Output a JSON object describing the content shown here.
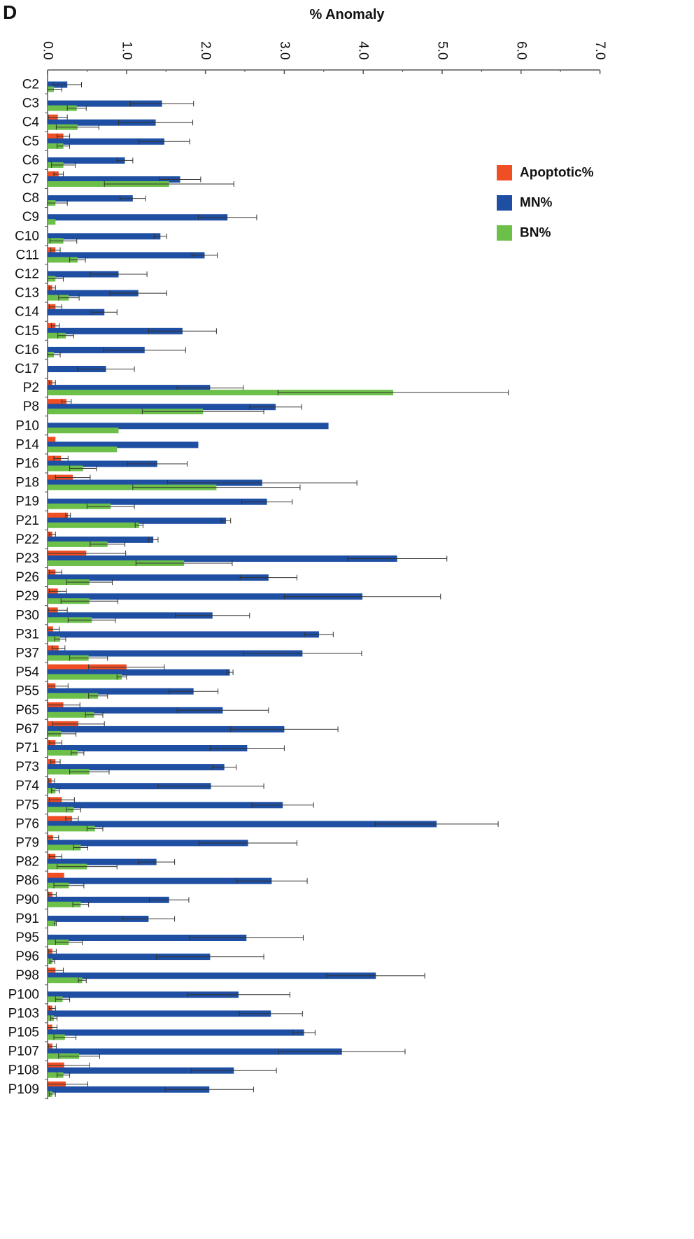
{
  "panel_label": "D",
  "chart_data": {
    "type": "bar",
    "orientation": "horizontal",
    "title": "% Anomaly",
    "xlabel": "% Anomaly",
    "ylabel": "",
    "xlim": [
      0,
      7
    ],
    "x_ticks": [
      "0.0",
      "1.0",
      "2.0",
      "3.0",
      "4.0",
      "5.0",
      "6.0",
      "7.0"
    ],
    "tick_label_rotation": "90° clockwise",
    "grid": false,
    "legend_position": "right",
    "colors": {
      "Apoptotic%": "#f04e23",
      "MN%": "#1f4fa3",
      "BN%": "#6cc04a"
    },
    "categories": [
      "C2",
      "C3",
      "C4",
      "C5",
      "C6",
      "C7",
      "C8",
      "C9",
      "C10",
      "C11",
      "C12",
      "C13",
      "C14",
      "C15",
      "C16",
      "C17",
      "P2",
      "P8",
      "P10",
      "P14",
      "P16",
      "P18",
      "P19",
      "P21",
      "P22",
      "P23",
      "P26",
      "P29",
      "P30",
      "P31",
      "P37",
      "P54",
      "P55",
      "P65",
      "P67",
      "P71",
      "P73",
      "P74",
      "P75",
      "P76",
      "P79",
      "P82",
      "P86",
      "P90",
      "P91",
      "P95",
      "P96",
      "P98",
      "P100",
      "P103",
      "P105",
      "P107",
      "P108",
      "P109"
    ],
    "series": [
      {
        "name": "Apoptotic%",
        "values": [
          0,
          0,
          0.13,
          0.2,
          0,
          0.14,
          0,
          0,
          0,
          0.1,
          0,
          0.06,
          0.1,
          0.1,
          0,
          0,
          0.06,
          0.24,
          0,
          0.1,
          0.17,
          0.32,
          0,
          0.26,
          0.06,
          0.49,
          0.1,
          0.13,
          0.13,
          0.07,
          0.14,
          1.0,
          0.1,
          0.2,
          0.39,
          0.1,
          0.1,
          0.05,
          0.18,
          0.31,
          0.07,
          0.1,
          0.21,
          0.06,
          0,
          0,
          0.06,
          0.1,
          0,
          0.06,
          0.06,
          0.06,
          0.21,
          0.23
        ],
        "errors": [
          0,
          0,
          0.12,
          0.08,
          0,
          0.06,
          0,
          0,
          0,
          0.06,
          0,
          0.04,
          0.08,
          0.05,
          0,
          0,
          0.04,
          0.06,
          0,
          0,
          0.09,
          0.22,
          0,
          0.03,
          0.04,
          0.5,
          0.08,
          0.11,
          0.12,
          0.08,
          0.08,
          0.48,
          0.16,
          0.21,
          0.33,
          0.08,
          0.06,
          0.04,
          0.16,
          0.08,
          0.07,
          0.08,
          0,
          0.05,
          0,
          0,
          0.05,
          0.1,
          0,
          0.04,
          0.06,
          0.05,
          0.32,
          0.28
        ]
      },
      {
        "name": "MN%",
        "values": [
          0.25,
          1.45,
          1.37,
          1.48,
          0.98,
          1.68,
          1.08,
          2.28,
          1.43,
          1.99,
          0.9,
          1.15,
          0.72,
          1.71,
          1.23,
          0.74,
          2.06,
          2.89,
          3.56,
          1.91,
          1.39,
          2.72,
          2.78,
          2.26,
          1.34,
          4.43,
          2.8,
          3.99,
          2.09,
          3.44,
          3.23,
          2.31,
          1.85,
          2.22,
          3.0,
          2.53,
          2.24,
          2.07,
          2.98,
          4.93,
          2.54,
          1.38,
          2.84,
          1.54,
          1.28,
          2.52,
          2.06,
          4.16,
          2.42,
          2.83,
          3.25,
          3.73,
          2.36,
          2.05
        ],
        "errors": [
          0.18,
          0.4,
          0.47,
          0.32,
          0.1,
          0.26,
          0.16,
          0.37,
          0.08,
          0.16,
          0.36,
          0.36,
          0.16,
          0.43,
          0.52,
          0.36,
          0.42,
          0.33,
          0,
          0,
          0.38,
          1.2,
          0.32,
          0.06,
          0.06,
          0.63,
          0.36,
          0.99,
          0.47,
          0.18,
          0.75,
          0.04,
          0.31,
          0.58,
          0.68,
          0.47,
          0.15,
          0.67,
          0.39,
          0.78,
          0.62,
          0.23,
          0.45,
          0.25,
          0.33,
          0.72,
          0.68,
          0.62,
          0.65,
          0.4,
          0.14,
          0.8,
          0.54,
          0.56
        ]
      },
      {
        "name": "BN%",
        "values": [
          0.08,
          0.37,
          0.38,
          0.2,
          0.2,
          1.54,
          0.1,
          0.1,
          0.2,
          0.38,
          0.1,
          0.27,
          0,
          0.23,
          0.08,
          0,
          4.38,
          1.97,
          0.9,
          0.88,
          0.45,
          2.14,
          0.8,
          1.16,
          0.76,
          1.73,
          0.53,
          0.53,
          0.56,
          0.16,
          0.52,
          0.94,
          0.64,
          0.59,
          0.17,
          0.38,
          0.53,
          0.1,
          0.33,
          0.6,
          0.42,
          0.5,
          0.27,
          0.42,
          0.1,
          0.27,
          0.06,
          0.44,
          0.19,
          0.08,
          0.22,
          0.4,
          0.2,
          0.06
        ],
        "errors": [
          0.1,
          0.12,
          0.27,
          0.08,
          0.15,
          0.82,
          0.15,
          0,
          0.17,
          0.1,
          0.1,
          0.13,
          0,
          0.1,
          0.08,
          0,
          1.46,
          0.77,
          0,
          0,
          0.17,
          1.06,
          0.3,
          0.05,
          0.22,
          0.61,
          0.29,
          0.36,
          0.3,
          0.07,
          0.24,
          0.06,
          0.12,
          0.11,
          0.19,
          0.08,
          0.25,
          0.05,
          0.09,
          0.1,
          0.09,
          0.38,
          0.19,
          0.1,
          0.01,
          0.17,
          0.03,
          0.05,
          0.09,
          0.04,
          0.14,
          0.26,
          0.08,
          0.04
        ]
      }
    ]
  }
}
